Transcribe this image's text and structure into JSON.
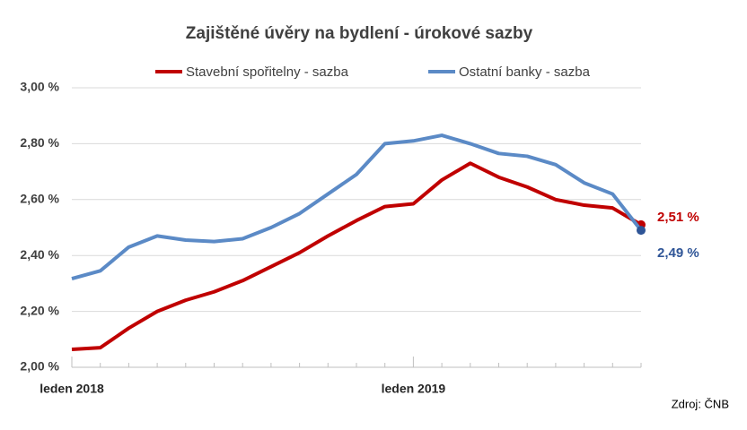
{
  "chart_data": {
    "type": "line",
    "title": "Zajištěné úvěry na bydlení - úrokové sazby",
    "source": "Zdroj: ČNB",
    "categories": [
      "leden 2018",
      null,
      null,
      null,
      null,
      null,
      null,
      null,
      null,
      null,
      null,
      null,
      "leden 2019",
      null,
      null,
      null,
      null,
      null,
      null,
      null,
      null
    ],
    "series": [
      {
        "name": "Stavební spořitelny - sazba",
        "color": "#c00000",
        "values": [
          2.064,
          2.07,
          2.14,
          2.2,
          2.24,
          2.27,
          2.31,
          2.36,
          2.41,
          2.47,
          2.525,
          2.575,
          2.585,
          2.67,
          2.73,
          2.68,
          2.645,
          2.6,
          2.58,
          2.57,
          2.51
        ],
        "value_labels": [
          null,
          null,
          null,
          null,
          null,
          null,
          null,
          null,
          null,
          null,
          null,
          null,
          null,
          null,
          null,
          null,
          null,
          null,
          null,
          null,
          "2,51 %"
        ]
      },
      {
        "name": "Ostatní banky - sazba",
        "color": "#5b8ac6",
        "marker_color": "#2f5597",
        "values": [
          2.317,
          2.345,
          2.43,
          2.47,
          2.455,
          2.45,
          2.46,
          2.5,
          2.55,
          2.62,
          2.69,
          2.8,
          2.81,
          2.83,
          2.8,
          2.765,
          2.755,
          2.725,
          2.66,
          2.62,
          2.49
        ],
        "value_labels": [
          null,
          null,
          null,
          null,
          null,
          null,
          null,
          null,
          null,
          null,
          null,
          null,
          null,
          null,
          null,
          null,
          null,
          null,
          null,
          null,
          "2,49 %"
        ]
      }
    ],
    "ylim": [
      2.0,
      3.0
    ],
    "yticks": [
      {
        "value": 2.0,
        "label": "2,00 %"
      },
      {
        "value": 2.2,
        "label": "2,20 %"
      },
      {
        "value": 2.4,
        "label": "2,40 %"
      },
      {
        "value": 2.6,
        "label": "2,60 %"
      },
      {
        "value": 2.8,
        "label": "2,80 %"
      },
      {
        "value": 3.0,
        "label": "3,00 %"
      }
    ],
    "grid": true,
    "legend": "top"
  }
}
